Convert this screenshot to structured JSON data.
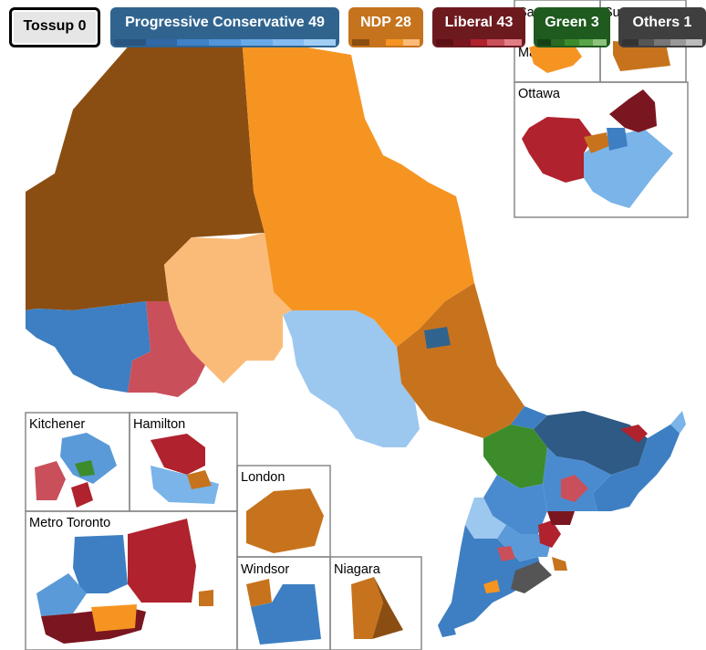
{
  "legend": {
    "tossup": "Tossup 0",
    "pc": "Progressive Conservative 49",
    "ndp": "NDP 28",
    "liberal": "Liberal 43",
    "green": "Green 3",
    "others": "Others 1"
  },
  "insets": {
    "sault": "Sa",
    "sault2": "Ma",
    "sudbury": "Su",
    "ottawa": "Ottawa",
    "kitchener": "Kitchener",
    "hamilton": "Hamilton",
    "london": "London",
    "toronto": "Metro Toronto",
    "windsor": "Windsor",
    "niagara": "Niagara"
  },
  "colors": {
    "pc_dark": "#2e5a85",
    "pc_mid": "#3d7fc2",
    "pc_light": "#7ab4e8",
    "ndp_dark": "#8b4e12",
    "ndp_mid": "#c7731d",
    "ndp_bright": "#f69422",
    "ndp_light": "#fbbb78",
    "lib_dark": "#7a1620",
    "lib_mid": "#b0222d",
    "lib_light": "#c9505a",
    "green": "#3c8c2c",
    "others": "#555555"
  }
}
